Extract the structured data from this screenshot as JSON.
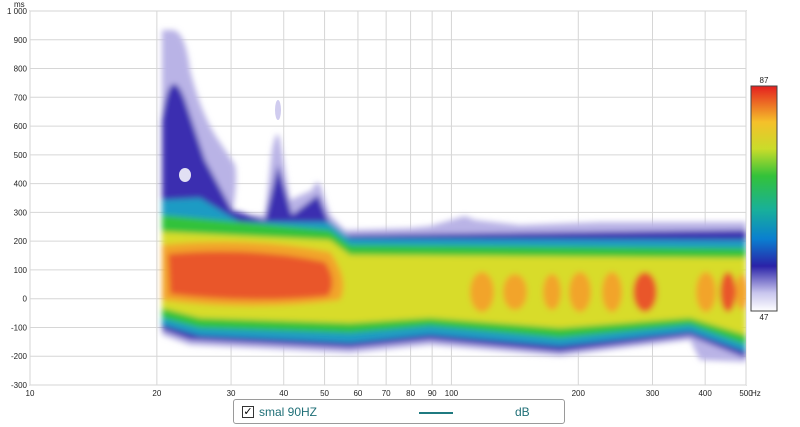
{
  "chart_data": {
    "type": "heatmap",
    "title": "",
    "xlabel": "",
    "ylabel": "",
    "x_unit": "Hz",
    "y_unit": "ms",
    "x_scale": "log",
    "xlim": [
      10,
      500
    ],
    "ylim": [
      -300,
      1000
    ],
    "x_ticks": [
      "10",
      "20",
      "30",
      "40",
      "50",
      "60",
      "70",
      "80",
      "90",
      "100",
      "200",
      "300",
      "400",
      "500"
    ],
    "y_ticks": [
      "-300",
      "-200",
      "-100",
      "0",
      "100",
      "200",
      "300",
      "400",
      "500",
      "600",
      "700",
      "800",
      "900",
      "1 000"
    ],
    "grid": true,
    "colorbar": {
      "min": "47",
      "max": "87"
    },
    "legend": {
      "series": "smal 90HZ",
      "unit": "dB",
      "checked": true,
      "color": "#1f7a80"
    }
  },
  "legend": {
    "check_mark": "✓",
    "label": "smal 90HZ",
    "unit": "dB"
  }
}
